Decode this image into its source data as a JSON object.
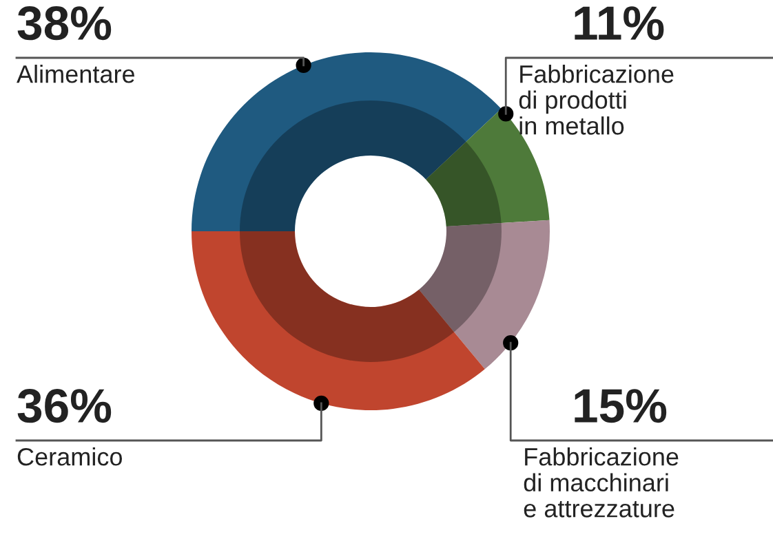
{
  "chart_data": {
    "type": "donut",
    "categories": [
      "Alimentare",
      "Fabbricazione\ndi prodotti\nin metallo",
      "Fabbricazione\ndi macchinari\ne attrezzature",
      "Ceramico"
    ],
    "values": [
      38,
      11,
      15,
      36
    ],
    "value_labels": [
      "38%",
      "11%",
      "15%",
      "36%"
    ],
    "colors": [
      "#1f5a80",
      "#4e7a3a",
      "#a88a94",
      "#c0452e"
    ],
    "legend": false
  }
}
